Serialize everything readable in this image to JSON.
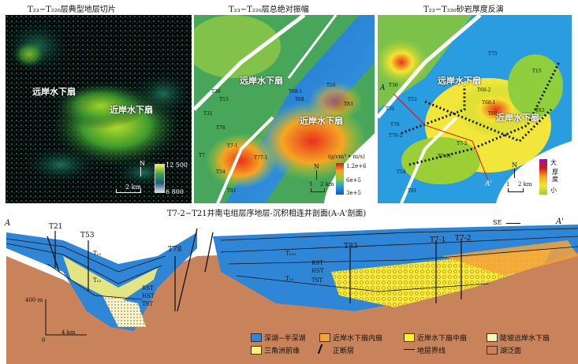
{
  "panels": {
    "p1": {
      "title": "T₂₃−T₂₂₀层典型地层切片",
      "labels": [
        "远岸水下扇",
        "近岸水下扇"
      ],
      "colorbar_max": "12 500",
      "colorbar_min": "6 800",
      "north": "N",
      "scale": "2 km"
    },
    "p2": {
      "title": "T₂₃−T₂₂₀层总绝对振幅",
      "labels": [
        "远岸水下扇",
        "近岸水下扇"
      ],
      "unit": "(g/cm³ • m/s)",
      "ticks": [
        "1.2e+6",
        "6e+5",
        "3e+5"
      ],
      "north": "N",
      "scale_0": "1",
      "scale_1": "2 km",
      "wells": [
        "T16",
        "T68-1",
        "T68",
        "T83",
        "T36",
        "T31",
        "T7",
        "T7-1",
        "T77-1",
        "T54",
        "T81",
        "T53",
        "T78"
      ]
    },
    "p3": {
      "title": "T₂₃−T₂₂₀砂岩厚度反演",
      "labels": [
        "远岸水下扇",
        "近岸水下扇"
      ],
      "legend_top": "大",
      "legend_mid": "厚度",
      "legend_bottom": "小",
      "north": "N",
      "scale_0": "1",
      "scale_1": "2 km",
      "line_a": "A",
      "line_a2": "A'",
      "wells": [
        "T75",
        "T15",
        "T36",
        "T53",
        "T31",
        "T78",
        "T78-2",
        "T68-2",
        "T68-1",
        "T68",
        "T83",
        "T7-2",
        "T7-01",
        "T54",
        "T81"
      ]
    }
  },
  "section": {
    "title": "T7-2−T21井南屯组层序地层-沉积相连井剖面(A-A'剖面)",
    "end_left": "A",
    "end_right": "A'",
    "se": "SE",
    "wells": [
      "T21",
      "T53",
      "T78",
      "T83",
      "T7-1",
      "T7-2"
    ],
    "horizons": [
      "T₂₃",
      "T₂₂",
      "T₂₂₀",
      "T₂₃"
    ],
    "tracts": [
      "RST",
      "HST",
      "TST",
      "RST",
      "HST",
      "TST"
    ],
    "scale_v": "400 m",
    "scale_h": "4 km",
    "scale_zero": "0"
  },
  "legend": [
    {
      "label": "深湖−半深湖",
      "color": "#2f86d6"
    },
    {
      "label": "近岸水下扇内扇",
      "color": "#f4a33a"
    },
    {
      "label": "近岸水下扇中扇",
      "color": "#ffee33"
    },
    {
      "label": "陡坡远岸水下扇",
      "color": "#fff1c0"
    },
    {
      "label": "三角洲前缘",
      "color": "#f7f07a"
    },
    {
      "label": "正断层",
      "color": "#000000"
    },
    {
      "label": "地层界线",
      "color": "#000000"
    },
    {
      "label": "湖泛面",
      "color": "#c9835a"
    }
  ]
}
